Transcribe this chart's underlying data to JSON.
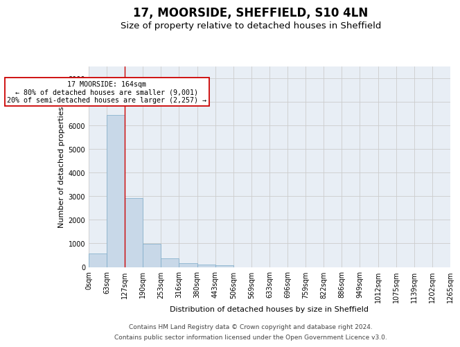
{
  "title_line1": "17, MOORSIDE, SHEFFIELD, S10 4LN",
  "title_line2": "Size of property relative to detached houses in Sheffield",
  "xlabel": "Distribution of detached houses by size in Sheffield",
  "ylabel": "Number of detached properties",
  "bar_color": "#c8d8e8",
  "bar_edge_color": "#7aaac8",
  "bar_heights": [
    570,
    6430,
    2920,
    980,
    360,
    170,
    100,
    60,
    0,
    0,
    0,
    0,
    0,
    0,
    0,
    0,
    0,
    0,
    0,
    0
  ],
  "bin_labels": [
    "0sqm",
    "63sqm",
    "127sqm",
    "190sqm",
    "253sqm",
    "316sqm",
    "380sqm",
    "443sqm",
    "506sqm",
    "569sqm",
    "633sqm",
    "696sqm",
    "759sqm",
    "822sqm",
    "886sqm",
    "949sqm",
    "1012sqm",
    "1075sqm",
    "1139sqm",
    "1202sqm",
    "1265sqm"
  ],
  "vline_x": 2,
  "vline_color": "#cc0000",
  "annotation_text": "17 MOORSIDE: 164sqm\n← 80% of detached houses are smaller (9,001)\n20% of semi-detached houses are larger (2,257) →",
  "annotation_box_color": "#ffffff",
  "annotation_box_edge_color": "#cc0000",
  "ylim": [
    0,
    8500
  ],
  "yticks": [
    0,
    1000,
    2000,
    3000,
    4000,
    5000,
    6000,
    7000,
    8000
  ],
  "grid_color": "#cccccc",
  "plot_bg_color": "#e8eef5",
  "footer_line1": "Contains HM Land Registry data © Crown copyright and database right 2024.",
  "footer_line2": "Contains public sector information licensed under the Open Government Licence v3.0.",
  "title_fontsize": 12,
  "subtitle_fontsize": 9.5,
  "axis_label_fontsize": 8,
  "tick_fontsize": 7,
  "footer_fontsize": 6.5
}
